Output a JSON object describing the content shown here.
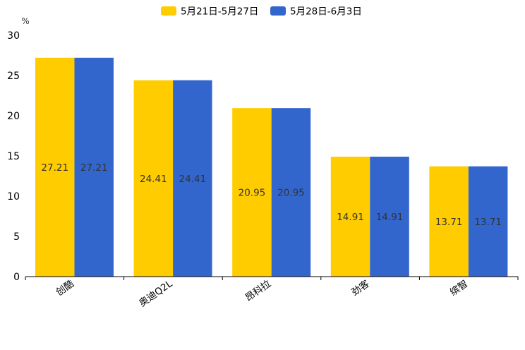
{
  "chart_data": {
    "type": "bar",
    "y_unit": "%",
    "ylim": [
      0,
      30
    ],
    "y_ticks": [
      0,
      5,
      10,
      15,
      20,
      25,
      30
    ],
    "categories": [
      "创酷",
      "奥迪Q2L",
      "昂科拉",
      "劲客",
      "缤智"
    ],
    "series": [
      {
        "name": "5月21日-5月27日",
        "color": "#FFCC00",
        "values": [
          27.21,
          24.41,
          20.95,
          14.91,
          13.71
        ]
      },
      {
        "name": "5月28日-6月3日",
        "color": "#3366CC",
        "values": [
          27.21,
          24.41,
          20.95,
          14.91,
          13.71
        ]
      }
    ],
    "legend_position": "top-center",
    "grid": false
  }
}
